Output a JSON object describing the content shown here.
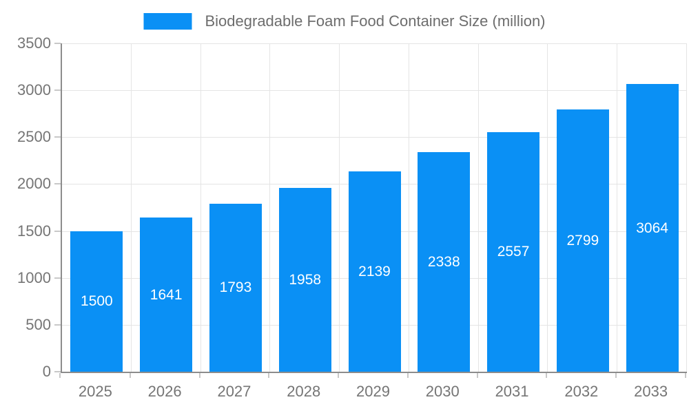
{
  "chart_data": {
    "type": "bar",
    "title": "Biodegradable Foam Food Container Size (million)",
    "legend": {
      "position": "top",
      "label": "Biodegradable Foam Food Container Size (million)"
    },
    "categories": [
      "2025",
      "2026",
      "2027",
      "2028",
      "2029",
      "2030",
      "2031",
      "2032",
      "2033"
    ],
    "values": [
      1500,
      1641,
      1793,
      1958,
      2139,
      2338,
      2557,
      2799,
      3064
    ],
    "xlabel": "",
    "ylabel": "",
    "ylim": [
      0,
      3500
    ],
    "ytick_step": 500,
    "ytick_labels": [
      "0",
      "500",
      "1000",
      "1500",
      "2000",
      "2500",
      "3000",
      "3500"
    ],
    "grid": true,
    "value_labels": "inside-center",
    "colors": {
      "bar": "#0a90f5",
      "value_label": "#ffffff",
      "axis": "#8c8c8c",
      "gridline": "#e4e4e4",
      "tick": "#c8c8c8",
      "axis_label": "#757575",
      "legend_text": "#6d6d6d",
      "background": "#ffffff"
    }
  }
}
